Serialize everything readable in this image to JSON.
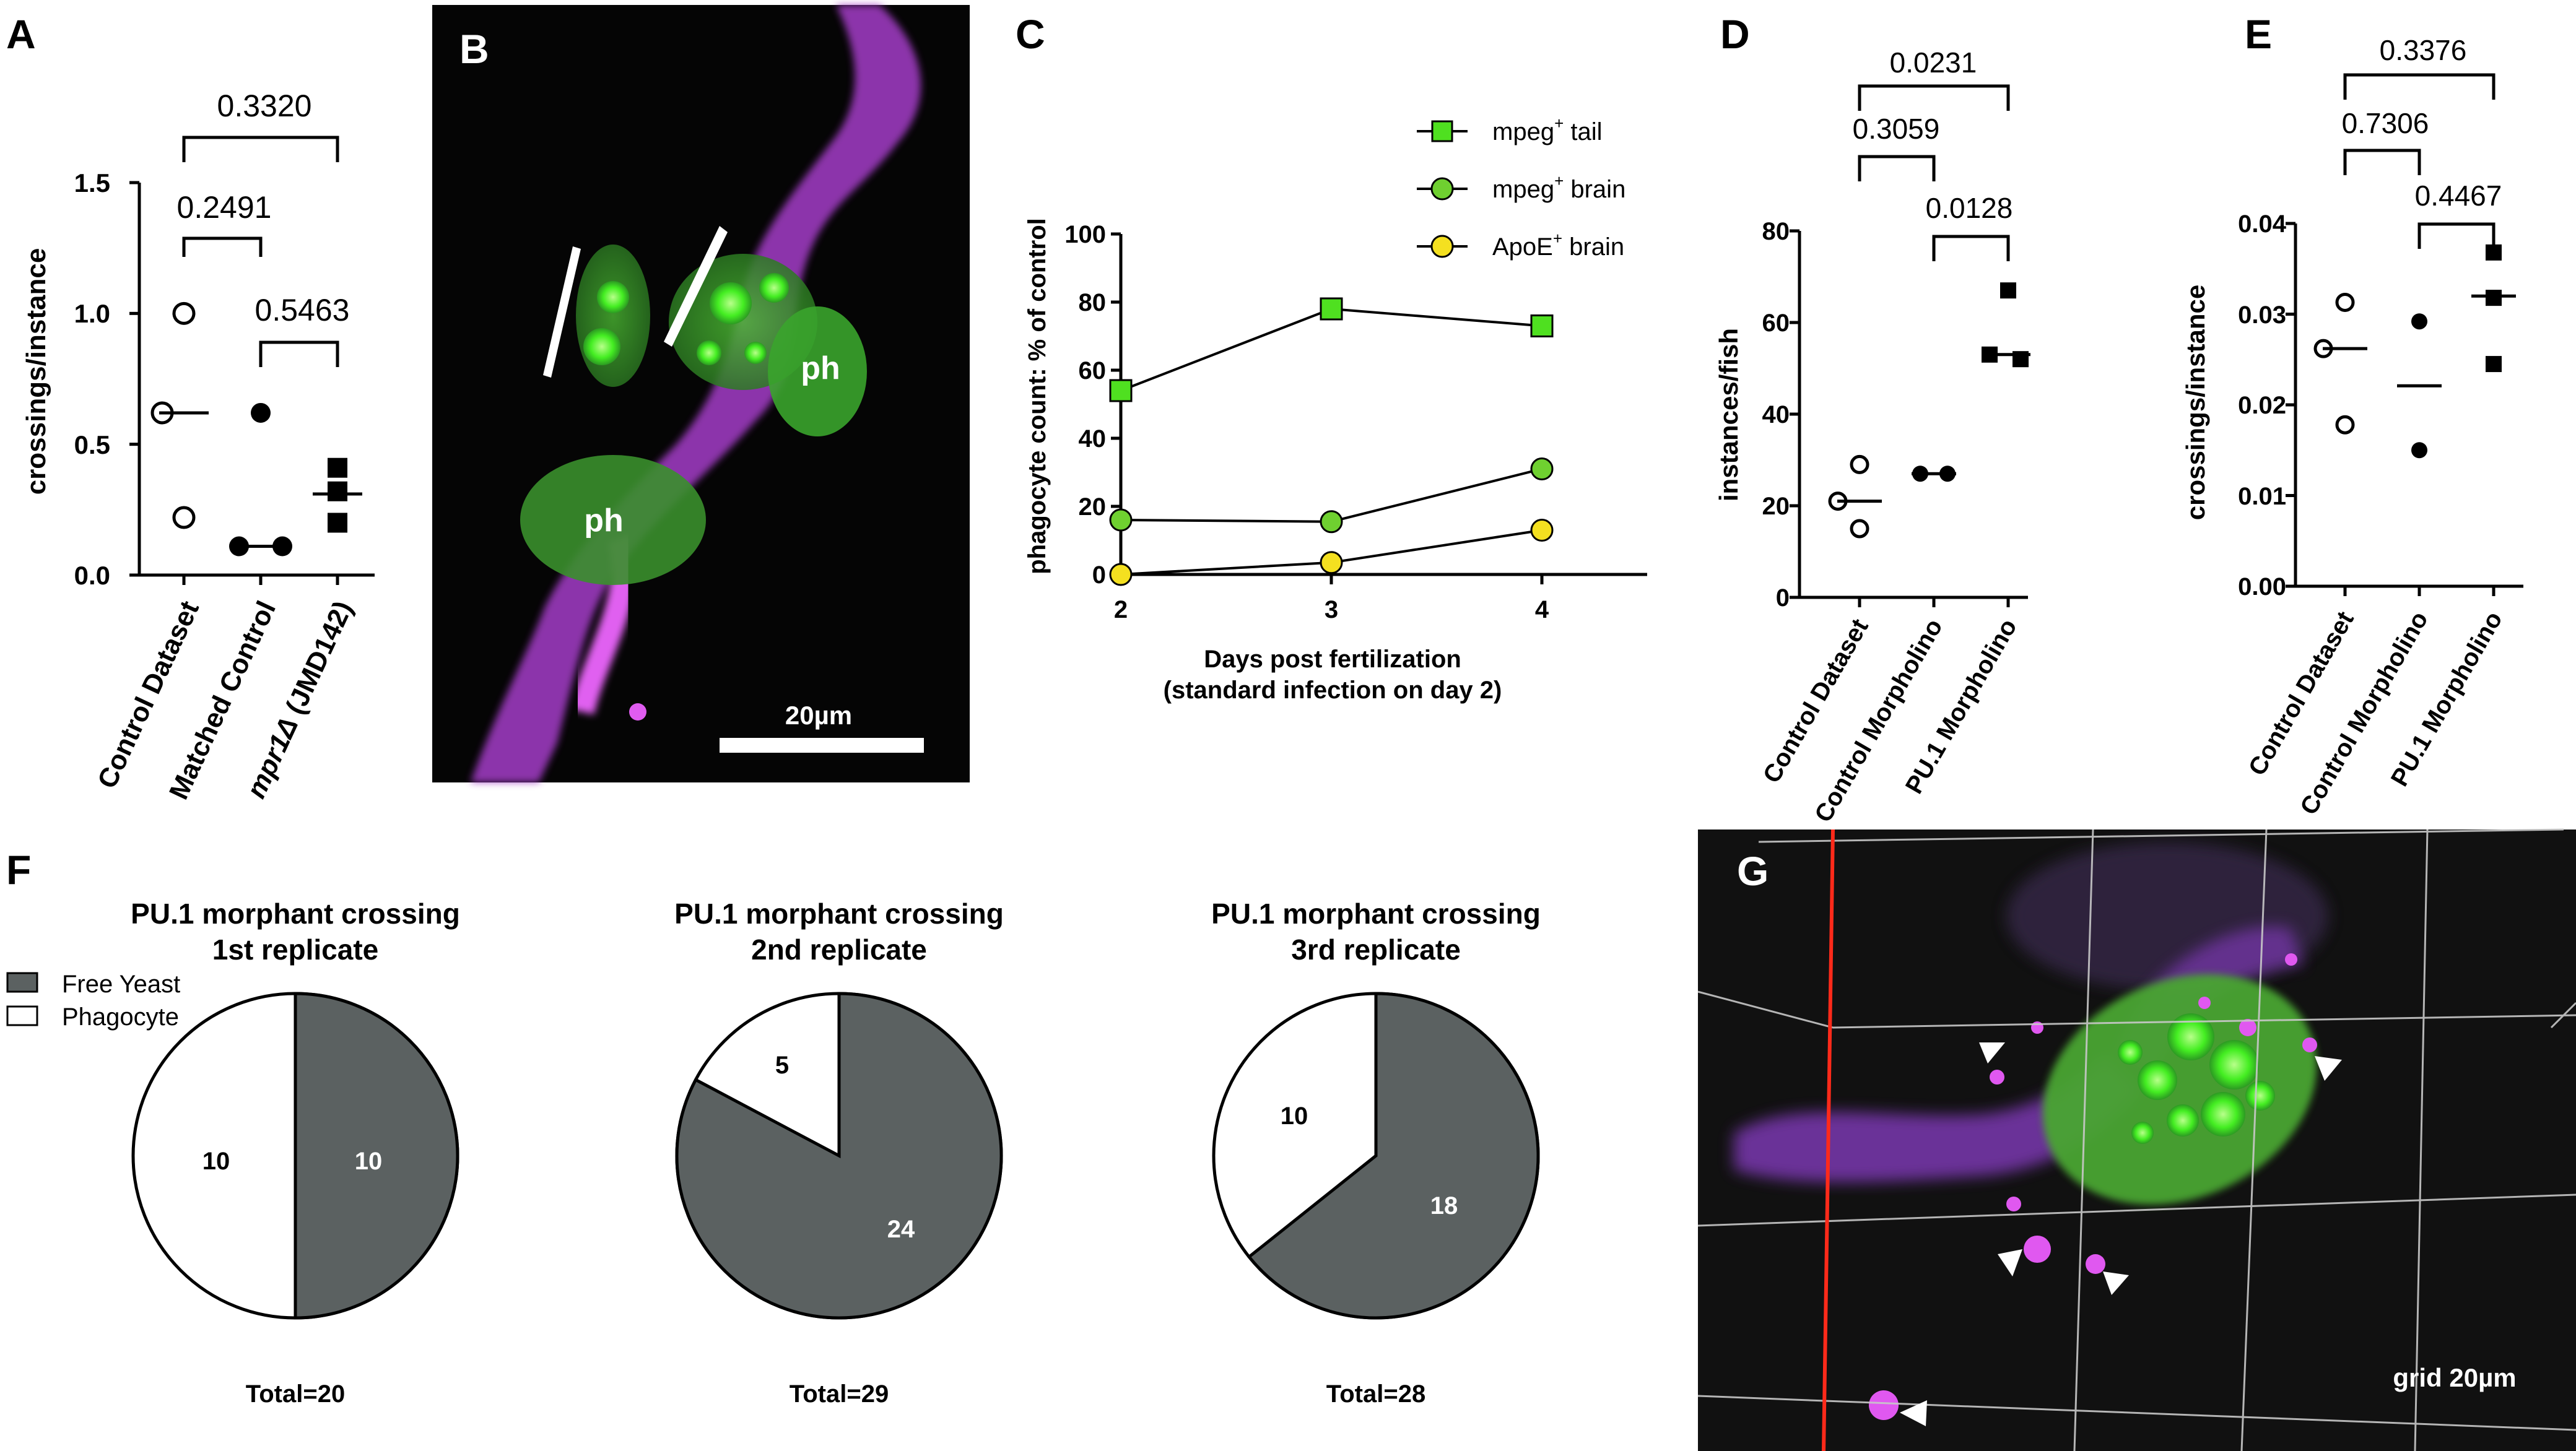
{
  "panels": {
    "A": {
      "letter": "A",
      "ylabel": "crossings/instance",
      "yticks": [
        "0.0",
        "0.5",
        "1.0",
        "1.5"
      ],
      "categories": [
        "Control Dataset",
        "Matched Control",
        "mpr1Δ (JMD142)"
      ],
      "cat3_italic": "mpr1Δ",
      "cat3_rest": " (JMD142)",
      "pvalues": [
        "0.3320",
        "0.2491",
        "0.5463"
      ]
    },
    "B": {
      "letter": "B",
      "ph1": "ph",
      "ph2": "ph",
      "scale": "20µm"
    },
    "C": {
      "letter": "C",
      "ylabel": "phagocyte count: % of control",
      "xlabel1": "Days post fertilization",
      "xlabel2": "(standard infection on day 2)",
      "yticks": [
        "0",
        "20",
        "40",
        "60",
        "80",
        "100"
      ],
      "xticks": [
        "2",
        "3",
        "4"
      ],
      "legend": [
        {
          "base": "mpeg",
          "sup": "+",
          "rest": " tail"
        },
        {
          "base": "mpeg",
          "sup": "+",
          "rest": " brain"
        },
        {
          "base": "ApoE",
          "sup": "+",
          "rest": " brain"
        }
      ]
    },
    "D": {
      "letter": "D",
      "ylabel": "instances/fish",
      "yticks": [
        "0",
        "20",
        "40",
        "60",
        "80"
      ],
      "categories": [
        "Control Dataset",
        "Control Morpholino",
        "PU.1 Morpholino"
      ],
      "pvalues": [
        "0.0231",
        "0.3059",
        "0.0128"
      ]
    },
    "E": {
      "letter": "E",
      "ylabel": "crossings/instance",
      "yticks": [
        "0.00",
        "0.01",
        "0.02",
        "0.03",
        "0.04"
      ],
      "categories": [
        "Control Dataset",
        "Control Morpholino",
        "PU.1 Morpholino"
      ],
      "pvalues": [
        "0.3376",
        "0.7306",
        "0.4467"
      ]
    },
    "F": {
      "letter": "F",
      "legend": [
        "Free Yeast",
        "Phagocyte"
      ],
      "pies": [
        {
          "title1": "PU.1 morphant crossing",
          "title2": "1st replicate",
          "yeast": 10,
          "phago": 10,
          "total": "Total=20"
        },
        {
          "title1": "PU.1 morphant crossing",
          "title2": "2nd replicate",
          "yeast": 24,
          "phago": 5,
          "total": "Total=29"
        },
        {
          "title1": "PU.1 morphant crossing",
          "title2": "3rd replicate",
          "yeast": 18,
          "phago": 10,
          "total": "Total=28"
        }
      ]
    },
    "G": {
      "letter": "G",
      "scale": "grid 20µm"
    }
  },
  "colors": {
    "square": "#4fe020",
    "circle_green": "#6fd030",
    "circle_yellow": "#f4e020",
    "pie_gray": "#5b6161",
    "micro_green": "#3faa2f",
    "micro_magenta": "#c040e0"
  },
  "chart_data": [
    {
      "type": "scatter",
      "panel": "A",
      "ylabel": "crossings/instance",
      "ylim": [
        0,
        1.5
      ],
      "categories": [
        "Control Dataset",
        "Matched Control",
        "mpr1Δ (JMD142)"
      ],
      "series": [
        {
          "name": "Control Dataset",
          "values": [
            1.0,
            0.62,
            0.22
          ],
          "mean": 0.62
        },
        {
          "name": "Matched Control",
          "values": [
            0.62,
            0.11,
            0.11
          ],
          "mean": 0.11
        },
        {
          "name": "mpr1Δ (JMD142)",
          "values": [
            0.41,
            0.32,
            0.2
          ],
          "mean": 0.31
        }
      ],
      "comparisons": [
        {
          "groups": [
            1,
            3
          ],
          "p": "0.3320"
        },
        {
          "groups": [
            1,
            2
          ],
          "p": "0.2491"
        },
        {
          "groups": [
            2,
            3
          ],
          "p": "0.5463"
        }
      ]
    },
    {
      "type": "line",
      "panel": "C",
      "xlabel": "Days post fertilization (standard infection on day 2)",
      "ylabel": "phagocyte count: % of control",
      "x": [
        2,
        3,
        4
      ],
      "ylim": [
        0,
        100
      ],
      "series": [
        {
          "name": "mpeg+ tail",
          "values": [
            54,
            78,
            73
          ]
        },
        {
          "name": "mpeg+ brain",
          "values": [
            16,
            15.5,
            31
          ]
        },
        {
          "name": "ApoE+ brain",
          "values": [
            0,
            3.5,
            13
          ]
        }
      ]
    },
    {
      "type": "scatter",
      "panel": "D",
      "ylabel": "instances/fish",
      "ylim": [
        0,
        80
      ],
      "categories": [
        "Control Dataset",
        "Control Morpholino",
        "PU.1 Morpholino"
      ],
      "series": [
        {
          "name": "Control Dataset",
          "values": [
            29,
            21,
            15
          ],
          "mean": 21
        },
        {
          "name": "Control Morpholino",
          "values": [
            27,
            27
          ],
          "mean": 27
        },
        {
          "name": "PU.1 Morpholino",
          "values": [
            67,
            53,
            52
          ],
          "mean": 53
        }
      ],
      "comparisons": [
        {
          "groups": [
            1,
            3
          ],
          "p": "0.0231"
        },
        {
          "groups": [
            1,
            2
          ],
          "p": "0.3059"
        },
        {
          "groups": [
            2,
            3
          ],
          "p": "0.0128"
        }
      ]
    },
    {
      "type": "scatter",
      "panel": "E",
      "ylabel": "crossings/instance",
      "ylim": [
        0,
        0.04
      ],
      "categories": [
        "Control Dataset",
        "Control Morpholino",
        "PU.1 Morpholino"
      ],
      "series": [
        {
          "name": "Control Dataset",
          "values": [
            0.0313,
            0.0262,
            0.0178
          ],
          "mean": 0.0262
        },
        {
          "name": "Control Morpholino",
          "values": [
            0.0292,
            0.015
          ],
          "mean": 0.0221
        },
        {
          "name": "PU.1 Morpholino",
          "values": [
            0.0368,
            0.0318,
            0.0245
          ],
          "mean": 0.032
        }
      ],
      "comparisons": [
        {
          "groups": [
            1,
            3
          ],
          "p": "0.3376"
        },
        {
          "groups": [
            1,
            2
          ],
          "p": "0.7306"
        },
        {
          "groups": [
            2,
            3
          ],
          "p": "0.4467"
        }
      ]
    },
    {
      "type": "pie",
      "panel": "F",
      "title": "PU.1 morphant crossing 1st replicate",
      "labels": [
        "Free Yeast",
        "Phagocyte"
      ],
      "values": [
        10,
        10
      ],
      "total": 20
    },
    {
      "type": "pie",
      "panel": "F",
      "title": "PU.1 morphant crossing 2nd replicate",
      "labels": [
        "Free Yeast",
        "Phagocyte"
      ],
      "values": [
        24,
        5
      ],
      "total": 29
    },
    {
      "type": "pie",
      "panel": "F",
      "title": "PU.1 morphant crossing 3rd replicate",
      "labels": [
        "Free Yeast",
        "Phagocyte"
      ],
      "values": [
        18,
        10
      ],
      "total": 28
    }
  ]
}
